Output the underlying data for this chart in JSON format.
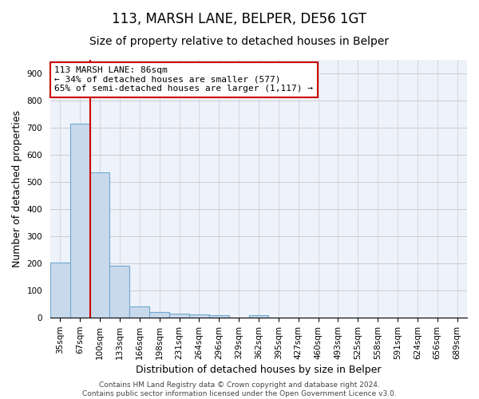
{
  "title1": "113, MARSH LANE, BELPER, DE56 1GT",
  "title2": "Size of property relative to detached houses in Belper",
  "xlabel": "Distribution of detached houses by size in Belper",
  "ylabel": "Number of detached properties",
  "categories": [
    "35sqm",
    "67sqm",
    "100sqm",
    "133sqm",
    "166sqm",
    "198sqm",
    "231sqm",
    "264sqm",
    "296sqm",
    "329sqm",
    "362sqm",
    "395sqm",
    "427sqm",
    "460sqm",
    "493sqm",
    "525sqm",
    "558sqm",
    "591sqm",
    "624sqm",
    "656sqm",
    "689sqm"
  ],
  "values": [
    202,
    714,
    537,
    193,
    42,
    20,
    15,
    13,
    10,
    0,
    9,
    0,
    0,
    0,
    0,
    0,
    0,
    0,
    0,
    0,
    0
  ],
  "bar_color": "#c9d9ec",
  "bar_edge_color": "#6fa8d0",
  "bar_linewidth": 0.8,
  "vline_x": 1.5,
  "vline_color": "#cc0000",
  "annotation_line1": "113 MARSH LANE: 86sqm",
  "annotation_line2": "← 34% of detached houses are smaller (577)",
  "annotation_line3": "65% of semi-detached houses are larger (1,117) →",
  "annotation_box_color": "white",
  "annotation_box_edge": "#cc0000",
  "ylim": [
    0,
    950
  ],
  "yticks": [
    0,
    100,
    200,
    300,
    400,
    500,
    600,
    700,
    800,
    900
  ],
  "grid_color": "#cccccc",
  "bg_color": "#eef2fa",
  "footer": "Contains HM Land Registry data © Crown copyright and database right 2024.\nContains public sector information licensed under the Open Government Licence v3.0.",
  "title1_fontsize": 12,
  "title2_fontsize": 10,
  "xlabel_fontsize": 9,
  "ylabel_fontsize": 9,
  "tick_fontsize": 7.5,
  "annotation_fontsize": 8,
  "footer_fontsize": 6.5
}
